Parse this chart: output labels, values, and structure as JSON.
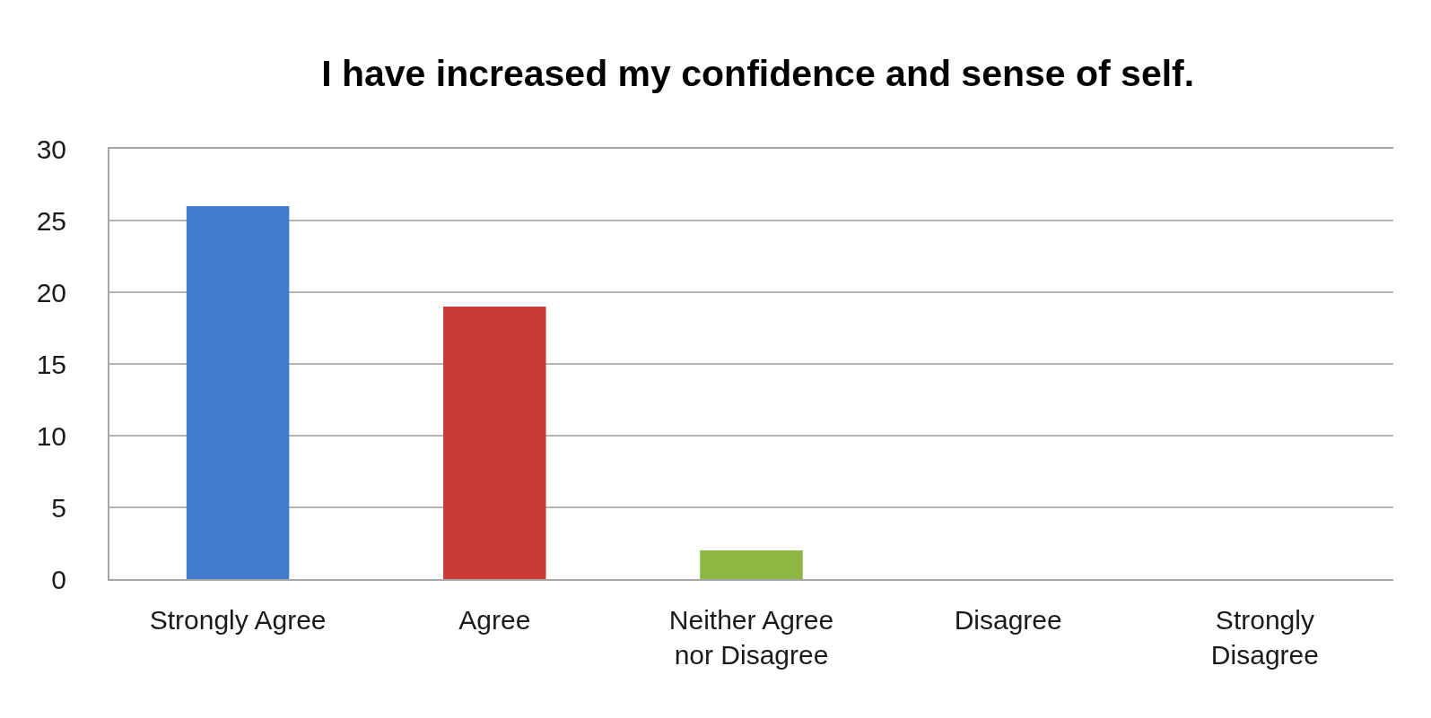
{
  "chart_data": {
    "type": "bar",
    "title": "I have increased my confidence and sense of self.",
    "categories": [
      "Strongly Agree",
      "Agree",
      "Neither Agree nor Disagree",
      "Disagree",
      "Strongly Disagree"
    ],
    "values": [
      26,
      19,
      2,
      0,
      0
    ],
    "colors": [
      "#3f7ccc",
      "#c93a36",
      "#8db842",
      null,
      null
    ],
    "ylim": [
      0,
      30
    ],
    "yticks": [
      0,
      5,
      10,
      15,
      20,
      25,
      30
    ],
    "grid": "y"
  }
}
